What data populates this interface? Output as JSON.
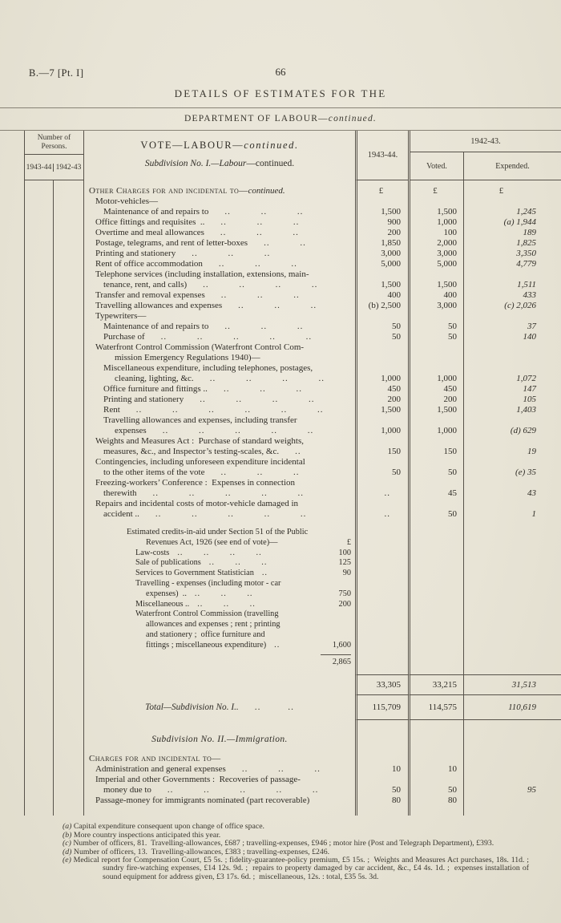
{
  "page": {
    "ref": "B.—7 [Pt. I]",
    "number": "66",
    "title": "DETAILS OF ESTIMATES FOR THE",
    "dept_main": "DEPARTMENT OF LABOUR—",
    "dept_it": "continued."
  },
  "header": {
    "persons_label": "Number of Persons.",
    "persons_y1": "1943-44",
    "persons_y2": "1942-43",
    "vote_main": "VOTE—LABOUR—",
    "vote_it": "continued.",
    "subdiv_it": "Subdivision No. I.—Labour",
    "subdiv_rest": "—continued.",
    "col_y1": "1943-44.",
    "col_y2": "1942-43.",
    "voted": "Voted.",
    "expended": "Expended."
  },
  "table": {
    "currency": "£",
    "body": [
      {
        "type": "row",
        "h": 20,
        "lines": [
          {
            "sc": "Other Charges for and incidental to—",
            "it": "continued.",
            "i": 0
          }
        ],
        "v": [
          "£",
          "£",
          "£"
        ]
      },
      {
        "type": "row",
        "lines": [
          {
            "t": "Motor-vehicles—",
            "i": 1
          }
        ],
        "v": [
          "",
          "",
          ""
        ]
      },
      {
        "type": "row",
        "lines": [
          {
            "t": "Maintenance of and repairs to",
            "i": 2,
            "d": 3
          }
        ],
        "v": [
          "1,500",
          "1,500",
          "1,245"
        ]
      },
      {
        "type": "row",
        "lines": [
          {
            "t": "Office fittings and requisites  ..",
            "i": 1,
            "d": 3
          }
        ],
        "v": [
          "900",
          "1,000",
          "(a) 1,944"
        ]
      },
      {
        "type": "row",
        "lines": [
          {
            "t": "Overtime and meal allowances",
            "i": 1,
            "d": 3
          }
        ],
        "v": [
          "200",
          "100",
          "189"
        ]
      },
      {
        "type": "row",
        "lines": [
          {
            "t": "Postage, telegrams, and rent of letter-boxes",
            "i": 1,
            "d": 2
          }
        ],
        "v": [
          "1,850",
          "2,000",
          "1,825"
        ]
      },
      {
        "type": "row",
        "lines": [
          {
            "t": "Printing and stationery",
            "i": 1,
            "d": 3
          }
        ],
        "v": [
          "3,000",
          "3,000",
          "3,350"
        ]
      },
      {
        "type": "row",
        "lines": [
          {
            "t": "Rent of office accommodation",
            "i": 1,
            "d": 3
          }
        ],
        "v": [
          "5,000",
          "5,000",
          "4,779"
        ]
      },
      {
        "type": "row",
        "lines": [
          {
            "t": "Telephone services (including installation, extensions, main-",
            "i": 1
          },
          {
            "t": "tenance, rent, and calls)",
            "i": 2,
            "d": 4
          }
        ],
        "v": [
          "1,500",
          "1,500",
          "1,511"
        ]
      },
      {
        "type": "row",
        "lines": [
          {
            "t": "Transfer and removal expenses",
            "i": 1,
            "d": 3
          }
        ],
        "v": [
          "400",
          "400",
          "433"
        ]
      },
      {
        "type": "row",
        "lines": [
          {
            "t": "Travelling allowances and expenses",
            "i": 1,
            "d": 3
          }
        ],
        "v": [
          "(b) 2,500",
          "3,000",
          "(c) 2,026"
        ]
      },
      {
        "type": "row",
        "lines": [
          {
            "t": "Typewriters—",
            "i": 1
          }
        ],
        "v": [
          "",
          "",
          ""
        ]
      },
      {
        "type": "row",
        "lines": [
          {
            "t": "Maintenance of and repairs to",
            "i": 2,
            "d": 3
          }
        ],
        "v": [
          "50",
          "50",
          "37"
        ]
      },
      {
        "type": "row",
        "lines": [
          {
            "t": "Purchase of",
            "i": 2,
            "d": 5
          }
        ],
        "v": [
          "50",
          "50",
          "140"
        ]
      },
      {
        "type": "row",
        "lines": [
          {
            "t": "Waterfront Control Commission (Waterfront Control Com-",
            "i": 1
          },
          {
            "t": "mission Emergency Regulations 1940)—",
            "i": 3
          }
        ],
        "v": [
          "",
          "",
          ""
        ]
      },
      {
        "type": "row",
        "lines": [
          {
            "t": "Miscellaneous expenditure, including telephones, postages,",
            "i": 2
          },
          {
            "t": "cleaning, lighting, &c.",
            "i": 3,
            "d": 4
          }
        ],
        "v": [
          "1,000",
          "1,000",
          "1,072"
        ]
      },
      {
        "type": "row",
        "lines": [
          {
            "t": "Office furniture and fittings ..",
            "i": 2,
            "d": 3
          }
        ],
        "v": [
          "450",
          "450",
          "147"
        ]
      },
      {
        "type": "row",
        "lines": [
          {
            "t": "Printing and stationery",
            "i": 2,
            "d": 4
          }
        ],
        "v": [
          "200",
          "200",
          "105"
        ]
      },
      {
        "type": "row",
        "lines": [
          {
            "t": "Rent",
            "i": 2,
            "d": 6
          }
        ],
        "v": [
          "1,500",
          "1,500",
          "1,403"
        ]
      },
      {
        "type": "row",
        "lines": [
          {
            "t": "Travelling allowances and expenses, including transfer",
            "i": 2
          },
          {
            "t": "expenses",
            "i": 3,
            "d": 5
          }
        ],
        "v": [
          "1,000",
          "1,000",
          "(d) 629"
        ]
      },
      {
        "type": "row",
        "lines": [
          {
            "t": "Weights and Measures Act :  Purchase of standard weights,",
            "i": 1
          },
          {
            "t": "measures, &c., and Inspector’s testing-scales, &c.",
            "i": 2,
            "d": 1
          }
        ],
        "v": [
          "150",
          "150",
          "19"
        ]
      },
      {
        "type": "row",
        "lines": [
          {
            "t": "Contingencies, including unforeseen expenditure incidental",
            "i": 1
          },
          {
            "t": "to the other items of the vote",
            "i": 2,
            "d": 3
          }
        ],
        "v": [
          "50",
          "50",
          "(e) 35"
        ]
      },
      {
        "type": "row",
        "lines": [
          {
            "t": "Freezing-workers’ Conference :  Expenses in connection",
            "i": 1
          },
          {
            "t": "therewith",
            "i": 2,
            "d": 5
          }
        ],
        "v": [
          "..",
          "45",
          "43"
        ]
      },
      {
        "type": "row",
        "lines": [
          {
            "t": "Repairs and incidental costs of motor-vehicle damaged in",
            "i": 1
          },
          {
            "t": "accident ..",
            "i": 2,
            "d": 5
          }
        ],
        "v": [
          "..",
          "50",
          "1"
        ]
      },
      {
        "type": "credits",
        "lines": [
          {
            "t": "Estimated credits-in-aid under Section 51 of the Public",
            "i": 0
          },
          {
            "t": "Revenues Act, 1926 (see end of vote)—",
            "i": 2,
            "val": "£"
          },
          {
            "t": "Law-costs",
            "i": 1,
            "d": 4,
            "val": "100"
          },
          {
            "t": "Sale of publications",
            "i": 1,
            "d": 3,
            "val": "125"
          },
          {
            "t": "Services to Government Statistician",
            "i": 1,
            "d": 1,
            "val": "90"
          },
          {
            "t": "Travelling - expenses (including motor - car",
            "i": 1
          },
          {
            "t": "expenses)  ..",
            "i": 2,
            "d": 3,
            "val": "750"
          },
          {
            "t": "Miscellaneous ..",
            "i": 1,
            "d": 3,
            "val": "200"
          },
          {
            "t": "Waterfront Control Commission (travelling",
            "i": 1
          },
          {
            "t": "allowances and expenses ; rent ; printing",
            "i": 2
          },
          {
            "t": "and stationery ;  office furniture and",
            "i": 2
          },
          {
            "t": "fittings ; miscellaneous expenditure)",
            "i": 2,
            "d": 1,
            "val": "1,600"
          }
        ],
        "total": "2,865",
        "v": [
          "",
          "",
          ""
        ]
      },
      {
        "type": "subtotal",
        "v": [
          "33,305",
          "33,215",
          "31,513"
        ]
      },
      {
        "type": "total",
        "label": "Total—Subdivision No. I..",
        "d": 2,
        "v": [
          "115,709",
          "114,575",
          "110,619"
        ]
      },
      {
        "type": "heading",
        "text": "Subdivision No. II.—Immigration.",
        "v": [
          "",
          "",
          ""
        ]
      },
      {
        "type": "row",
        "lines": [
          {
            "sc": "Charges for and incidental to—",
            "i": 0
          }
        ],
        "v": [
          "",
          "",
          ""
        ]
      },
      {
        "type": "row",
        "lines": [
          {
            "t": "Administration and general expenses",
            "i": 1,
            "d": 3
          }
        ],
        "v": [
          "10",
          "10",
          ""
        ]
      },
      {
        "type": "row",
        "lines": [
          {
            "t": "Imperial and other Governments :  Recoveries of passage-",
            "i": 1
          },
          {
            "t": "money due to",
            "i": 2,
            "d": 5
          }
        ],
        "v": [
          "50",
          "50",
          "95"
        ]
      },
      {
        "type": "row",
        "lines": [
          {
            "t": "Passage-money for immigrants nominated (part recoverable)",
            "i": 1
          }
        ],
        "v": [
          "80",
          "80",
          ""
        ]
      },
      {
        "type": "gap",
        "h": 12,
        "v": [
          "",
          "",
          ""
        ]
      }
    ]
  },
  "footnotes": [
    {
      "tag": "(a)",
      "text": "Capital expenditure consequent upon change of office space."
    },
    {
      "tag": "(b)",
      "text": "More country inspections anticipated this year."
    },
    {
      "tag": "(c)",
      "text": "Number of officers, 81.  Travelling-allowances, £687 ; travelling-expenses, £946 ; motor hire (Post and Telegraph Department), £393."
    },
    {
      "tag": "(d)",
      "text": "Number of officers, 13.  Travelling-allowances, £383 ; travelling-expenses, £246."
    },
    {
      "tag": "(e)",
      "text": "Medical report for Compensation Court, £5 5s. ; fidelity-guarantee-policy premium, £5 15s. ;  Weights and Measures Act purchases, 18s. 11d. ; sundry fire-watching expenses, £14 12s. 9d. ;  repairs to property damaged by car accident, &c., £4 4s. 1d. ;  expenses installation of sound equipment for address given, £3 17s. 6d. ;  miscellaneous, 12s. : total, £35 5s. 3d."
    }
  ]
}
